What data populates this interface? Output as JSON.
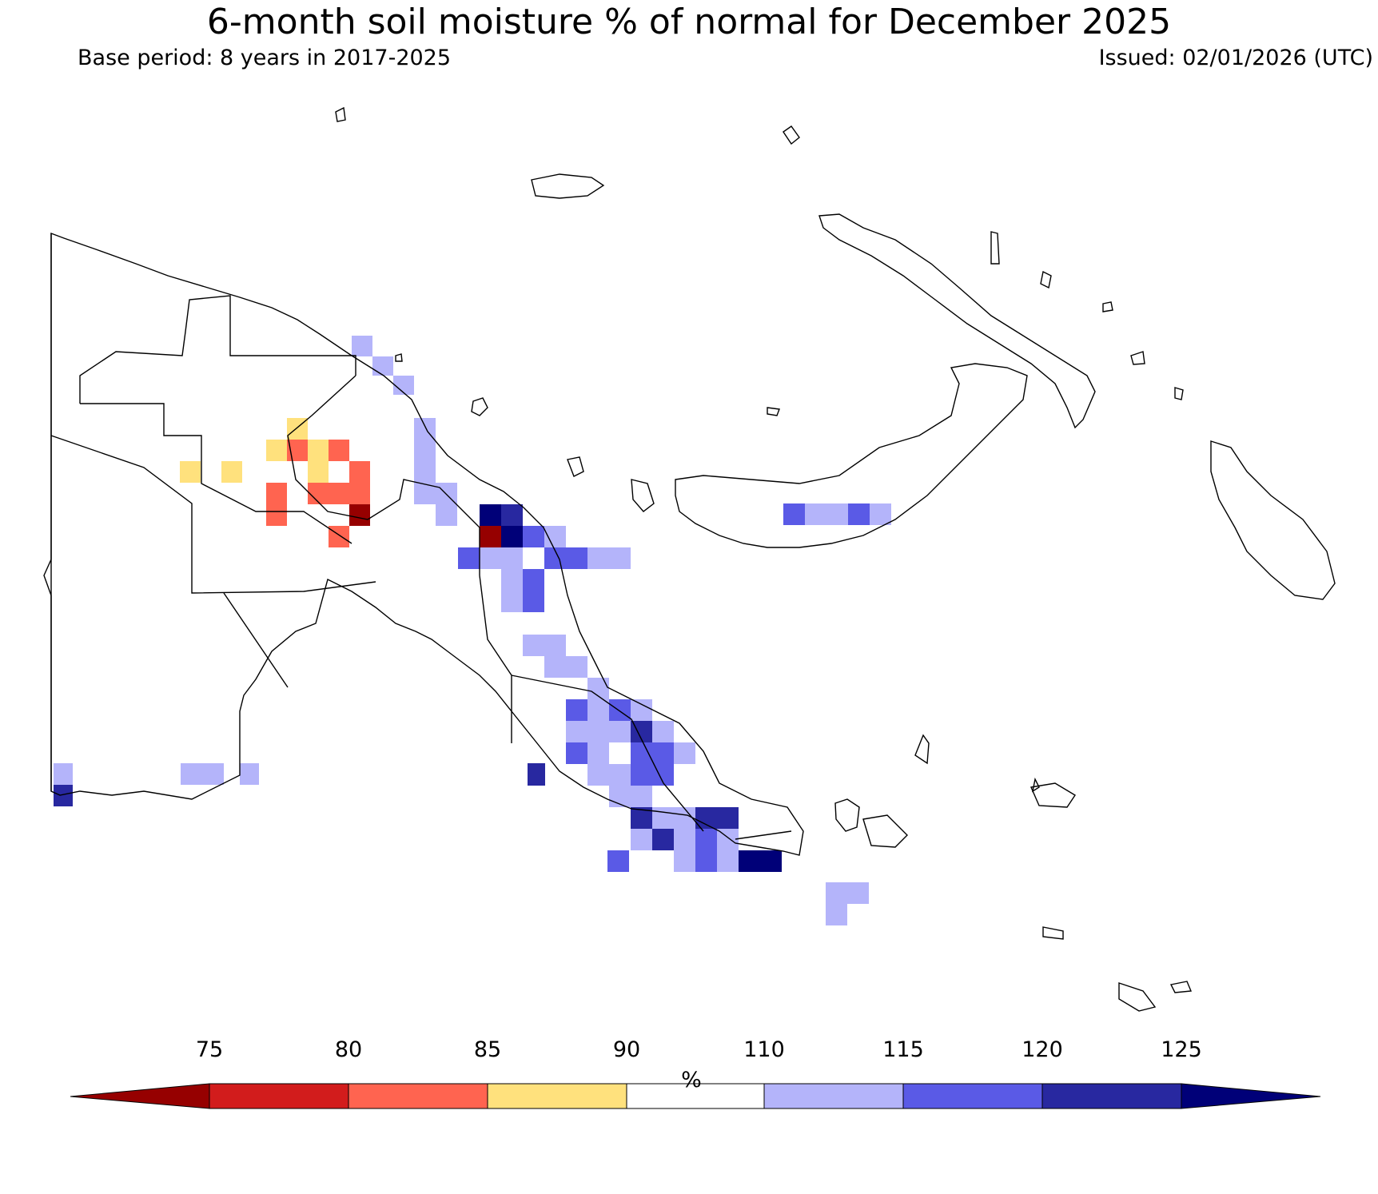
{
  "header": {
    "title": "6-month soil moisture % of normal for December 2025",
    "base_period": "Base period: 8 years in 2017-2025",
    "issued": "Issued: 02/01/2026 (UTC)"
  },
  "colorbar": {
    "ticks": [
      "75",
      "80",
      "85",
      "90",
      "110",
      "115",
      "120",
      "125"
    ],
    "unit": "%",
    "bins": [
      {
        "range": "<75",
        "color": "#960000"
      },
      {
        "range": "75-80",
        "color": "#D21C1C"
      },
      {
        "range": "80-85",
        "color": "#FF6450"
      },
      {
        "range": "85-90",
        "color": "#FFE17D"
      },
      {
        "range": "90-110",
        "color": "#FFFFFF"
      },
      {
        "range": "110-115",
        "color": "#B4B4FA"
      },
      {
        "range": "115-120",
        "color": "#5A5AE6"
      },
      {
        "range": "120-125",
        "color": "#2828A0"
      },
      {
        "range": ">125",
        "color": "#000078"
      }
    ]
  },
  "map": {
    "region": "Papua New Guinea",
    "palette": {
      "dr": "#960000",
      "r": "#FF6450",
      "y": "#FFE17D",
      "l": "#B4B4FA",
      "m": "#5A5AE6",
      "d": "#2828A0",
      "n": "#000078"
    }
  }
}
